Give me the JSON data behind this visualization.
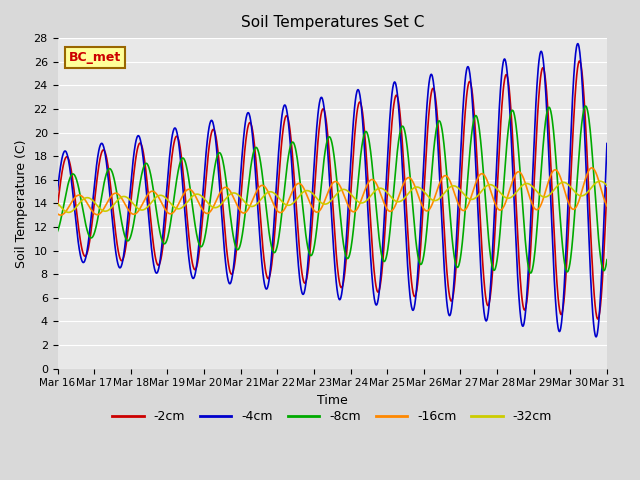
{
  "title": "Soil Temperatures Set C",
  "xlabel": "Time",
  "ylabel": "Soil Temperature (C)",
  "ylim": [
    0,
    28
  ],
  "background_color": "#d9d9d9",
  "plot_bg_color": "#e8e8e8",
  "grid_color": "#ffffff",
  "annotation_label": "BC_met",
  "annotation_color": "#cc0000",
  "annotation_bg": "#ffff99",
  "legend_labels": [
    "-2cm",
    "-4cm",
    "-8cm",
    "-16cm",
    "-32cm"
  ],
  "line_colors": [
    "#cc0000",
    "#0000cc",
    "#00aa00",
    "#ff8800",
    "#cccc00"
  ],
  "xtick_labels": [
    "Mar 16",
    "Mar 17",
    "Mar 18",
    "Mar 19",
    "Mar 20",
    "Mar 21",
    "Mar 22",
    "Mar 23",
    "Mar 24",
    "Mar 25",
    "Mar 26",
    "Mar 27",
    "Mar 28",
    "Mar 29",
    "Mar 30",
    "Mar 31"
  ],
  "ytick_values": [
    0,
    2,
    4,
    6,
    8,
    10,
    12,
    14,
    16,
    18,
    20,
    22,
    24,
    26,
    28
  ],
  "days": 15,
  "hours_per_day": 24
}
